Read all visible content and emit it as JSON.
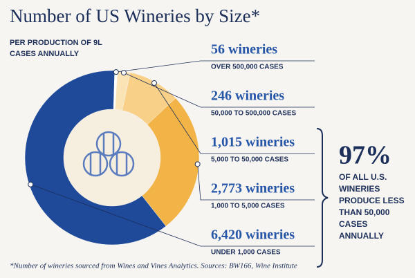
{
  "chart_data": {
    "type": "donut",
    "title": "Number of US Wineries by Size*",
    "subtitle": "PER PRODUCTION OF 9L CASES ANNUALLY",
    "categories": [
      "OVER 500,000 CASES",
      "50,000 TO 500,000 CASES",
      "5,000 TO 50,000 CASES",
      "1,000 TO 5,000 CASES",
      "UNDER 1,000 CASES"
    ],
    "values": [
      56,
      246,
      1015,
      2773,
      6420
    ],
    "value_labels": [
      "56 wineries",
      "246 wineries",
      "1,015 wineries",
      "2,773 wineries",
      "6,420 wineries"
    ],
    "colors": [
      "#ffffff",
      "#fae3b4",
      "#f8d087",
      "#f3b447",
      "#1f4a9a"
    ],
    "annotation": {
      "headline": "97%",
      "text": "OF ALL U.S. WINERIES PRODUCE LESS THAN 50,000 CASES ANNUALLY"
    },
    "footnote": "*Number of wineries sourced from Wines and Vines Analytics. Sources: BW166, Wine Institute"
  }
}
